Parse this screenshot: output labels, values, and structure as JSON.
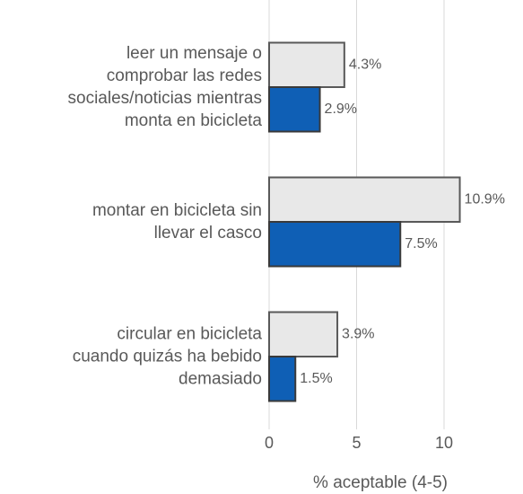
{
  "chart_data": {
    "type": "bar",
    "orientation": "horizontal",
    "categories": [
      "leer un mensaje o\ncomprobar las redes\nsociales/noticias mientras\nmonta en bicicleta",
      "montar en bicicleta sin\nllevar el casco",
      "circular en bicicleta\ncuando quizás ha bebido\ndemasiado"
    ],
    "series": [
      {
        "color": "#e8e8e8",
        "edge_color": "#595959",
        "values": [
          4.3,
          10.9,
          3.9
        ],
        "value_labels": [
          "4.3%",
          "10.9%",
          "3.9%"
        ]
      },
      {
        "color": "#0f5fb5",
        "edge_color": "#3a3a3a",
        "values": [
          2.9,
          7.5,
          1.5
        ],
        "value_labels": [
          "2.9%",
          "7.5%",
          "1.5%"
        ]
      }
    ],
    "xlabel": "% aceptable (4-5)",
    "xlim": [
      0,
      12
    ],
    "xticks": [
      0,
      5,
      10
    ],
    "grid": true
  }
}
